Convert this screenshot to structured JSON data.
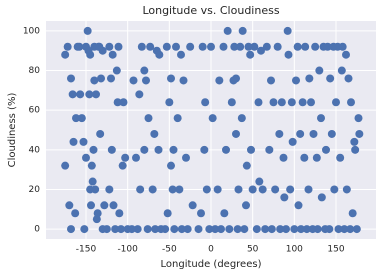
{
  "chart_data": {
    "type": "scatter",
    "title": "Longitude vs. Cloudiness",
    "x_label": "Longitude (degrees)",
    "y_label": "Cloudiness (%)",
    "color": "#4c72b0",
    "grid": true,
    "xlim": [
      -198,
      198
    ],
    "ylim": [
      -5,
      105
    ],
    "xticks": [
      -150,
      -100,
      -50,
      0,
      50,
      100,
      150
    ],
    "yticks": [
      0,
      20,
      40,
      60,
      80,
      100
    ],
    "x": [
      -175,
      -172,
      -170,
      -168,
      -166,
      -165,
      -163,
      -160,
      -175,
      -168,
      -162,
      -158,
      -157,
      -152,
      -150,
      -148,
      -147,
      -145,
      -145,
      -143,
      -142,
      -140,
      -140,
      -138,
      -137,
      -135,
      -133,
      -132,
      -130,
      -130,
      -128,
      -150,
      -155,
      -153,
      -146,
      -141,
      -136,
      -134,
      -144,
      -139,
      -125,
      -122,
      -120,
      -118,
      -117,
      -115,
      -113,
      -112,
      -110,
      -108,
      -106,
      -105,
      -103,
      -100,
      -122,
      -119,
      -111,
      -95,
      -93,
      -90,
      -88,
      -85,
      -83,
      -80,
      -78,
      -76,
      -75,
      -73,
      -70,
      -68,
      -67,
      -65,
      -63,
      -62,
      -60,
      -86,
      -80,
      -55,
      -53,
      -50,
      -48,
      -46,
      -45,
      -44,
      -42,
      -40,
      -38,
      -35,
      -33,
      -30,
      -28,
      -25,
      -22,
      -48,
      -36,
      -52,
      -15,
      -12,
      -10,
      -8,
      -5,
      -2,
      0,
      2,
      5,
      8,
      10,
      12,
      15,
      18,
      20,
      22,
      -7,
      16,
      25,
      27,
      28,
      30,
      32,
      33,
      35,
      37,
      38,
      40,
      42,
      45,
      47,
      48,
      50,
      52,
      55,
      57,
      58,
      60,
      30,
      43,
      62,
      65,
      67,
      70,
      72,
      73,
      75,
      77,
      80,
      82,
      83,
      85,
      87,
      88,
      90,
      92,
      93,
      95,
      97,
      98,
      100,
      102,
      104,
      105,
      107,
      108,
      110,
      112,
      113,
      115,
      117,
      118,
      120,
      122,
      123,
      125,
      127,
      128,
      130,
      132,
      133,
      135,
      137,
      138,
      140,
      142,
      143,
      145,
      147,
      148,
      150,
      152,
      153,
      155,
      157,
      158,
      160,
      162,
      163,
      165,
      167,
      168,
      170,
      172,
      173,
      175,
      177,
      178
    ],
    "values": [
      88,
      92,
      12,
      76,
      68,
      44,
      8,
      92,
      32,
      0,
      56,
      92,
      68,
      0,
      92,
      100,
      90,
      88,
      20,
      32,
      24,
      92,
      75,
      68,
      5,
      92,
      48,
      76,
      90,
      0,
      12,
      36,
      56,
      44,
      68,
      40,
      8,
      92,
      12,
      20,
      0,
      92,
      76,
      88,
      12,
      0,
      80,
      64,
      8,
      0,
      32,
      64,
      36,
      0,
      20,
      40,
      92,
      0,
      75,
      36,
      0,
      20,
      92,
      40,
      75,
      0,
      56,
      92,
      20,
      48,
      0,
      90,
      40,
      88,
      0,
      68,
      80,
      0,
      92,
      64,
      32,
      20,
      40,
      0,
      92,
      56,
      20,
      0,
      75,
      36,
      0,
      92,
      12,
      76,
      88,
      8,
      0,
      8,
      92,
      40,
      20,
      0,
      92,
      56,
      0,
      20,
      75,
      0,
      92,
      40,
      100,
      0,
      64,
      8,
      64,
      75,
      92,
      48,
      0,
      20,
      92,
      56,
      100,
      0,
      12,
      92,
      88,
      40,
      20,
      92,
      0,
      64,
      24,
      90,
      76,
      32,
      20,
      0,
      92,
      40,
      75,
      0,
      64,
      20,
      92,
      48,
      0,
      64,
      36,
      16,
      0,
      100,
      88,
      20,
      64,
      44,
      0,
      75,
      92,
      12,
      48,
      0,
      64,
      36,
      92,
      0,
      20,
      76,
      64,
      0,
      48,
      92,
      36,
      0,
      80,
      56,
      16,
      92,
      0,
      40,
      92,
      0,
      76,
      48,
      92,
      20,
      64,
      92,
      0,
      36,
      80,
      92,
      0,
      88,
      20,
      76,
      0,
      64,
      8,
      44,
      40,
      0,
      56,
      48
    ]
  }
}
